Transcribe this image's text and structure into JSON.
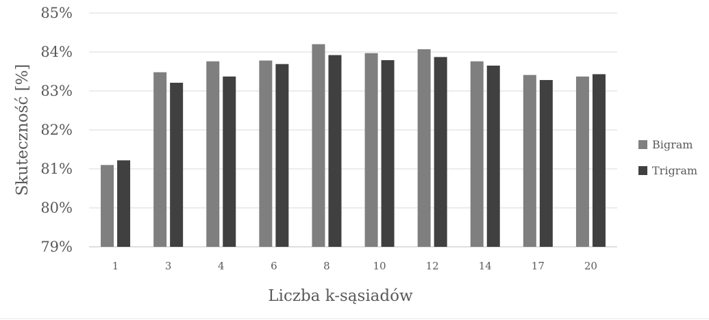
{
  "chart_data": {
    "type": "bar",
    "title": "",
    "xlabel": "Liczba k-sąsiadów",
    "ylabel": "Skuteczność [%]",
    "categories": [
      "1",
      "3",
      "4",
      "6",
      "8",
      "10",
      "12",
      "14",
      "17",
      "20"
    ],
    "series": [
      {
        "name": "Bigram",
        "color": "#7f7f7f",
        "values": [
          81.1,
          83.48,
          83.76,
          83.78,
          84.2,
          83.97,
          84.07,
          83.76,
          83.41,
          83.37
        ]
      },
      {
        "name": "Trigram",
        "color": "#404040",
        "values": [
          81.22,
          83.21,
          83.37,
          83.69,
          83.92,
          83.79,
          83.87,
          83.65,
          83.28,
          83.43
        ]
      }
    ],
    "ylim": [
      79,
      85
    ],
    "yticks": [
      "79%",
      "80%",
      "81%",
      "82%",
      "83%",
      "84%",
      "85%"
    ],
    "grid": true,
    "legend_position": "right"
  }
}
